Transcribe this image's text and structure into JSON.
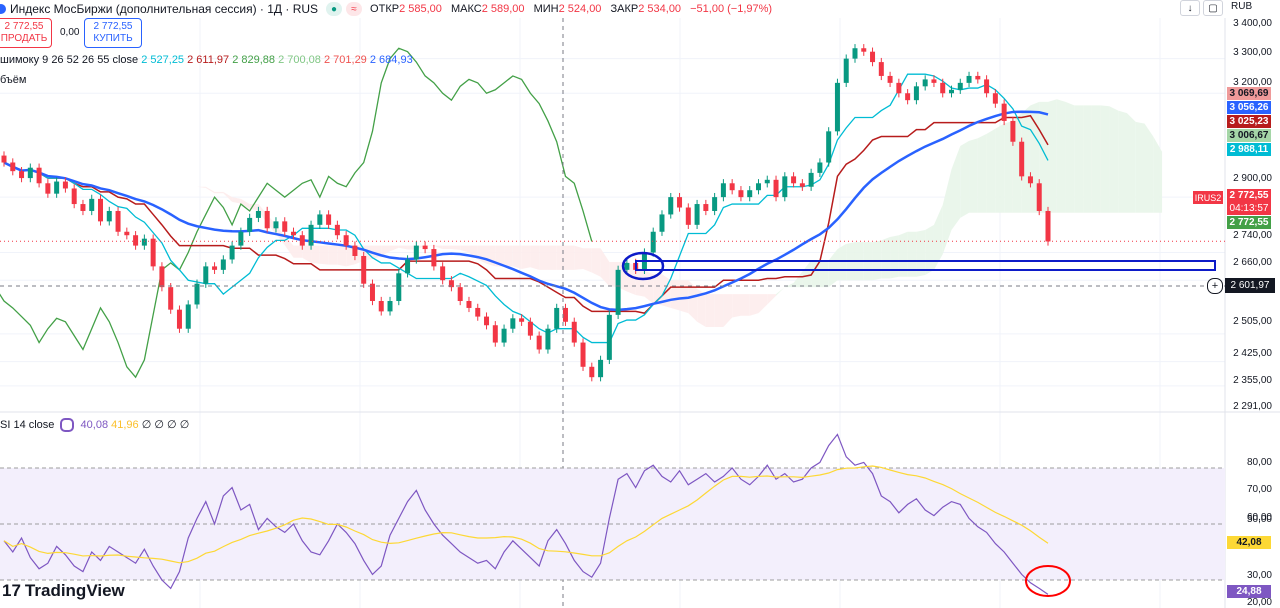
{
  "header": {
    "title": "Индекс МосБиржи (дополнительная сессия) · 1Д · RUS",
    "ohlc": [
      {
        "label": "ОТКР",
        "value": "2 585,00"
      },
      {
        "label": "МАКС",
        "value": "2 589,00"
      },
      {
        "label": "МИН",
        "value": "2 524,00"
      },
      {
        "label": "ЗАКР",
        "value": "2 534,00"
      }
    ],
    "change": "−51,00 (−1,97%)",
    "currency": "RUB"
  },
  "trade": {
    "sell_price": "2 772,55",
    "sell_label": "ПРОДАТЬ",
    "spread": "0,00",
    "buy_price": "2 772,55",
    "buy_label": "КУПИТЬ"
  },
  "indicators": {
    "ichimoku_label": "шимоку 9 26 52 26 55 close",
    "ichimoku_values": [
      "2 527,25",
      "2 611,97",
      "2 829,88",
      "2 700,08",
      "2 701,29",
      "2 684,93"
    ],
    "volume_label": "бъём",
    "rsi_label": "SI 14 close",
    "rsi_values": [
      "40,08",
      "41,96",
      "∅",
      "∅",
      "∅",
      "∅"
    ]
  },
  "price_axis": {
    "ticks": [
      "3 400,00",
      "3 300,00",
      "3 200,00",
      "2 900,00",
      "2 740,00",
      "2 660,00",
      "2 505,00",
      "2 425,00",
      "2 355,00",
      "2 291,00"
    ],
    "tags": [
      {
        "text": "3 069,69",
        "color": "#ef9a9a",
        "text_color": "#131722"
      },
      {
        "text": "3 056,26",
        "color": "#2962ff",
        "text_color": "#ffffff"
      },
      {
        "text": "3 025,23",
        "color": "#b71c1c",
        "text_color": "#ffffff"
      },
      {
        "text": "3 006,67",
        "color": "#a5d6a7",
        "text_color": "#131722"
      },
      {
        "text": "2 988,11",
        "color": "#00bcd4",
        "text_color": "#ffffff"
      }
    ],
    "symbol_tag": "IRUS2",
    "last_price": "2 772,55",
    "countdown": "04:13:57",
    "last_price_green": "2 772,55",
    "crosshair_price": "2 601,97"
  },
  "rsi_axis": {
    "ticks": [
      "80,00",
      "70,00",
      "60,00",
      "50,00",
      "30,00",
      "20,00"
    ],
    "value_tag": "42,08",
    "rsi_tag": "24,88"
  },
  "branding": {
    "logo": "TradingView"
  },
  "colors": {
    "up": "#089981",
    "down": "#f23645",
    "kijun": "#b71c1c",
    "tenkan": "#00bcd4",
    "chikou": "#43a047",
    "ema": "#2962ff",
    "rsi": "#7e57c2",
    "rsi_ma": "#fdd835",
    "cloud_bull": "#e8f5e9",
    "cloud_bear": "#fdecec",
    "annot_blue": "#0d1bc8",
    "annot_red": "#ff0000"
  },
  "chart_data": {
    "type": "candlestick",
    "price_range": [
      2291,
      3400
    ],
    "rsi_range": [
      20,
      80
    ],
    "candles_close": [
      3000,
      2975,
      2955,
      2985,
      2940,
      2910,
      2945,
      2925,
      2880,
      2860,
      2895,
      2830,
      2860,
      2800,
      2790,
      2760,
      2780,
      2700,
      2640,
      2575,
      2520,
      2590,
      2650,
      2700,
      2690,
      2720,
      2760,
      2800,
      2840,
      2860,
      2810,
      2830,
      2800,
      2790,
      2760,
      2820,
      2850,
      2820,
      2790,
      2760,
      2730,
      2650,
      2600,
      2570,
      2600,
      2680,
      2720,
      2760,
      2750,
      2700,
      2660,
      2640,
      2600,
      2580,
      2555,
      2530,
      2480,
      2520,
      2550,
      2540,
      2500,
      2460,
      2520,
      2580,
      2540,
      2480,
      2410,
      2380,
      2430,
      2560,
      2690,
      2710,
      2690,
      2740,
      2800,
      2850,
      2900,
      2870,
      2820,
      2880,
      2860,
      2900,
      2940,
      2920,
      2900,
      2920,
      2940,
      2950,
      2900,
      2960,
      2940,
      2930,
      2970,
      3000,
      3090,
      3230,
      3300,
      3330,
      3320,
      3290,
      3250,
      3230,
      3200,
      3180,
      3220,
      3240,
      3230,
      3200,
      3210,
      3230,
      3250,
      3240,
      3200,
      3170,
      3120,
      3060,
      2960,
      2940,
      2860,
      2772
    ],
    "rsi": [
      44,
      40,
      45,
      38,
      34,
      36,
      42,
      39,
      35,
      33,
      40,
      37,
      42,
      40,
      38,
      36,
      41,
      35,
      30,
      27,
      33,
      45,
      52,
      58,
      50,
      60,
      63,
      55,
      57,
      48,
      52,
      49,
      47,
      50,
      44,
      40,
      39,
      44,
      50,
      47,
      43,
      37,
      32,
      35,
      46,
      52,
      58,
      62,
      55,
      50,
      46,
      43,
      40,
      38,
      36,
      37,
      34,
      40,
      44,
      41,
      38,
      35,
      44,
      48,
      43,
      37,
      33,
      31,
      36,
      52,
      66,
      68,
      63,
      69,
      71,
      67,
      65,
      69,
      64,
      66,
      68,
      65,
      67,
      70,
      66,
      64,
      67,
      71,
      66,
      68,
      65,
      66,
      70,
      72,
      78,
      82,
      74,
      71,
      72,
      68,
      60,
      58,
      54,
      57,
      59,
      55,
      53,
      56,
      58,
      57,
      52,
      49,
      47,
      43,
      40,
      36,
      32,
      29,
      27,
      24.88
    ]
  }
}
